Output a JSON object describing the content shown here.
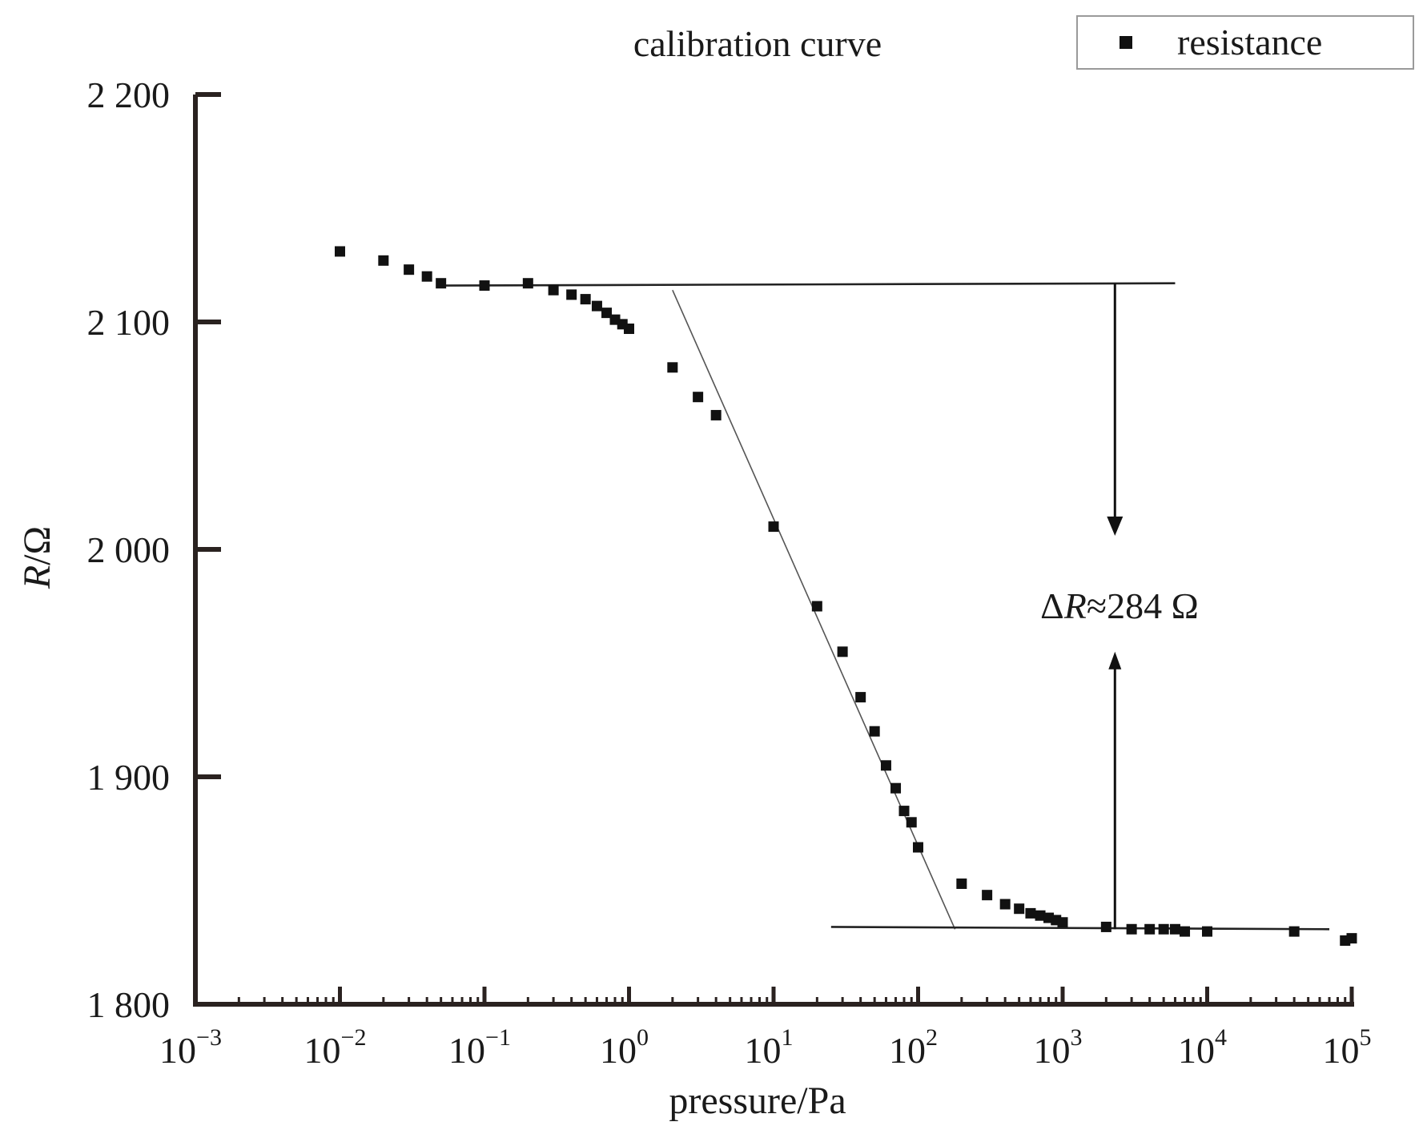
{
  "chart_data": {
    "type": "scatter",
    "title": "calibration curve",
    "xlabel": "pressure/Pa",
    "ylabel_italic": "R",
    "ylabel_rest": "/Ω",
    "x_scale": "log",
    "xlim": [
      0.001,
      100000
    ],
    "ylim": [
      1800,
      2200
    ],
    "grid": false,
    "legend": {
      "position": "top-right",
      "entries": [
        "resistance"
      ]
    },
    "x_ticks": [
      {
        "value": 0.001,
        "base": "10",
        "exp": "−3"
      },
      {
        "value": 0.01,
        "base": "10",
        "exp": "−2"
      },
      {
        "value": 0.1,
        "base": "10",
        "exp": "−1"
      },
      {
        "value": 1,
        "base": "10",
        "exp": "0"
      },
      {
        "value": 10,
        "base": "10",
        "exp": "1"
      },
      {
        "value": 100,
        "base": "10",
        "exp": "2"
      },
      {
        "value": 1000,
        "base": "10",
        "exp": "3"
      },
      {
        "value": 10000,
        "base": "10",
        "exp": "4"
      },
      {
        "value": 100000,
        "base": "10",
        "exp": "5"
      }
    ],
    "y_ticks": [
      {
        "value": 1800,
        "label": "1 800"
      },
      {
        "value": 1900,
        "label": "1 900"
      },
      {
        "value": 2000,
        "label": "2 000"
      },
      {
        "value": 2100,
        "label": "2 100"
      },
      {
        "value": 2200,
        "label": "2 200"
      }
    ],
    "series": [
      {
        "name": "resistance",
        "marker": "square",
        "color": "#111111",
        "points": [
          [
            0.01,
            2131
          ],
          [
            0.02,
            2127
          ],
          [
            0.03,
            2123
          ],
          [
            0.04,
            2120
          ],
          [
            0.05,
            2117
          ],
          [
            0.1,
            2116
          ],
          [
            0.2,
            2117
          ],
          [
            0.3,
            2114
          ],
          [
            0.4,
            2112
          ],
          [
            0.5,
            2110
          ],
          [
            0.6,
            2107
          ],
          [
            0.7,
            2104
          ],
          [
            0.8,
            2101
          ],
          [
            0.9,
            2099
          ],
          [
            1,
            2097
          ],
          [
            2,
            2080
          ],
          [
            3,
            2067
          ],
          [
            4,
            2059
          ],
          [
            10,
            2010
          ],
          [
            20,
            1975
          ],
          [
            30,
            1955
          ],
          [
            40,
            1935
          ],
          [
            50,
            1920
          ],
          [
            60,
            1905
          ],
          [
            70,
            1895
          ],
          [
            80,
            1885
          ],
          [
            90,
            1880
          ],
          [
            100,
            1869
          ],
          [
            200,
            1853
          ],
          [
            300,
            1848
          ],
          [
            400,
            1844
          ],
          [
            500,
            1842
          ],
          [
            600,
            1840
          ],
          [
            700,
            1839
          ],
          [
            800,
            1838
          ],
          [
            900,
            1837
          ],
          [
            1000,
            1836
          ],
          [
            2000,
            1834
          ],
          [
            3000,
            1833
          ],
          [
            4000,
            1833
          ],
          [
            5000,
            1833
          ],
          [
            6000,
            1833
          ],
          [
            7000,
            1832
          ],
          [
            10000,
            1832
          ],
          [
            40000,
            1832
          ],
          [
            90000,
            1828
          ],
          [
            100000,
            1829
          ]
        ]
      }
    ],
    "fit_lines": [
      {
        "role": "upper-plateau",
        "from": [
          0.05,
          2116
        ],
        "to": [
          6000,
          2117
        ]
      },
      {
        "role": "transition",
        "from": [
          2,
          2114
        ],
        "to": [
          180,
          1833
        ]
      },
      {
        "role": "lower-plateau",
        "from": [
          25,
          1834
        ],
        "to": [
          70000,
          1833
        ]
      }
    ],
    "annotation": {
      "delta": "Δ",
      "italic": "R",
      "rest": "≈284 Ω",
      "arrow_x": 2300,
      "arrow_top": 2117,
      "arrow_bottom": 1833,
      "arrow_gap": [
        2006,
        1955
      ]
    }
  }
}
